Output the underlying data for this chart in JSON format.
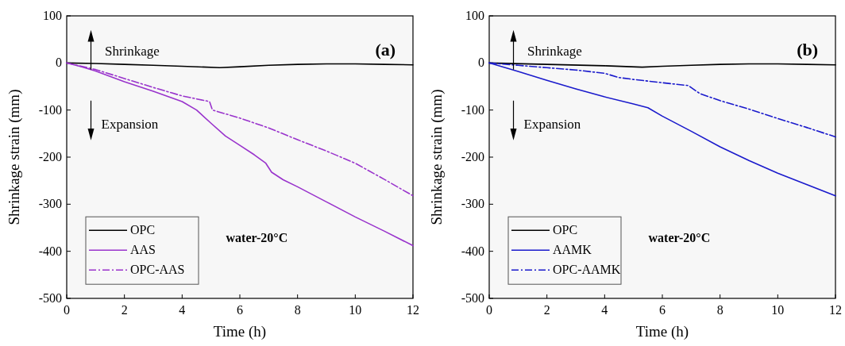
{
  "chart_data": [
    {
      "type": "line",
      "xlabel": "Time (h)",
      "ylabel": "Shrinkage strain (mm)",
      "xlim": [
        0,
        12
      ],
      "ylim": [
        -500,
        100
      ],
      "xticks": [
        0,
        2,
        4,
        6,
        8,
        10,
        12
      ],
      "yticks": [
        -500,
        -400,
        -300,
        -200,
        -100,
        0,
        100
      ],
      "legend": "bottom left",
      "grid": false,
      "annotations": [
        "Shrinkage",
        "Expansion",
        "(a)",
        "water-20°C"
      ],
      "series": [
        {
          "name": "OPC",
          "color": "#000000",
          "line_style": "solid",
          "x": [
            0,
            1,
            2,
            3,
            4,
            5.3,
            6,
            7,
            8,
            9,
            10,
            11,
            12
          ],
          "values": [
            0,
            -1,
            -3,
            -5,
            -7,
            -10,
            -8,
            -5,
            -3,
            -2,
            -2,
            -3,
            -4
          ]
        },
        {
          "name": "AAS",
          "color": "#9933cc",
          "line_style": "solid",
          "x": [
            0,
            0.5,
            1,
            2,
            3,
            4,
            4.5,
            5,
            5.5,
            6,
            6.5,
            6.9,
            7.1,
            7.5,
            8,
            9,
            10,
            11,
            12
          ],
          "values": [
            0,
            -8,
            -17,
            -40,
            -60,
            -82,
            -100,
            -128,
            -155,
            -175,
            -195,
            -213,
            -232,
            -248,
            -263,
            -295,
            -327,
            -357,
            -388
          ]
        },
        {
          "name": "OPC-AAS",
          "color": "#9933cc",
          "line_style": "dashed",
          "x": [
            0,
            1,
            2,
            3,
            4,
            4.95,
            5.05,
            6,
            7,
            8,
            9,
            10,
            11,
            12
          ],
          "values": [
            0,
            -14,
            -33,
            -52,
            -70,
            -82,
            -100,
            -117,
            -138,
            -163,
            -187,
            -213,
            -247,
            -282
          ]
        }
      ]
    },
    {
      "type": "line",
      "xlabel": "Time (h)",
      "ylabel": "Shrinkage strain (mm)",
      "xlim": [
        0,
        12
      ],
      "ylim": [
        -500,
        100
      ],
      "xticks": [
        0,
        2,
        4,
        6,
        8,
        10,
        12
      ],
      "yticks": [
        -500,
        -400,
        -300,
        -200,
        -100,
        0,
        100
      ],
      "legend": "bottom left",
      "grid": false,
      "annotations": [
        "Shrinkage",
        "Expansion",
        "(b)",
        "water-20°C"
      ],
      "series": [
        {
          "name": "OPC",
          "color": "#000000",
          "line_style": "solid",
          "x": [
            0,
            2,
            4,
            5.3,
            6,
            7,
            8,
            9,
            10,
            11,
            12
          ],
          "values": [
            0,
            -3,
            -6,
            -9,
            -7,
            -5,
            -3,
            -2,
            -2,
            -3,
            -4
          ]
        },
        {
          "name": "AAMK",
          "color": "#1a1acc",
          "line_style": "solid",
          "x": [
            0,
            1,
            2,
            3,
            4,
            5,
            5.5,
            6,
            7,
            8,
            9,
            10,
            11,
            12
          ],
          "values": [
            0,
            -18,
            -37,
            -55,
            -72,
            -87,
            -95,
            -113,
            -145,
            -178,
            -207,
            -234,
            -258,
            -282
          ]
        },
        {
          "name": "OPC-AAMK",
          "color": "#1a1acc",
          "line_style": "dashed",
          "x": [
            0,
            1,
            2,
            3,
            4,
            4.5,
            5,
            6,
            6.9,
            7.3,
            8,
            9,
            10,
            11,
            12
          ],
          "values": [
            0,
            -5,
            -10,
            -15,
            -22,
            -31,
            -35,
            -42,
            -48,
            -65,
            -80,
            -98,
            -118,
            -137,
            -157
          ]
        }
      ]
    }
  ]
}
